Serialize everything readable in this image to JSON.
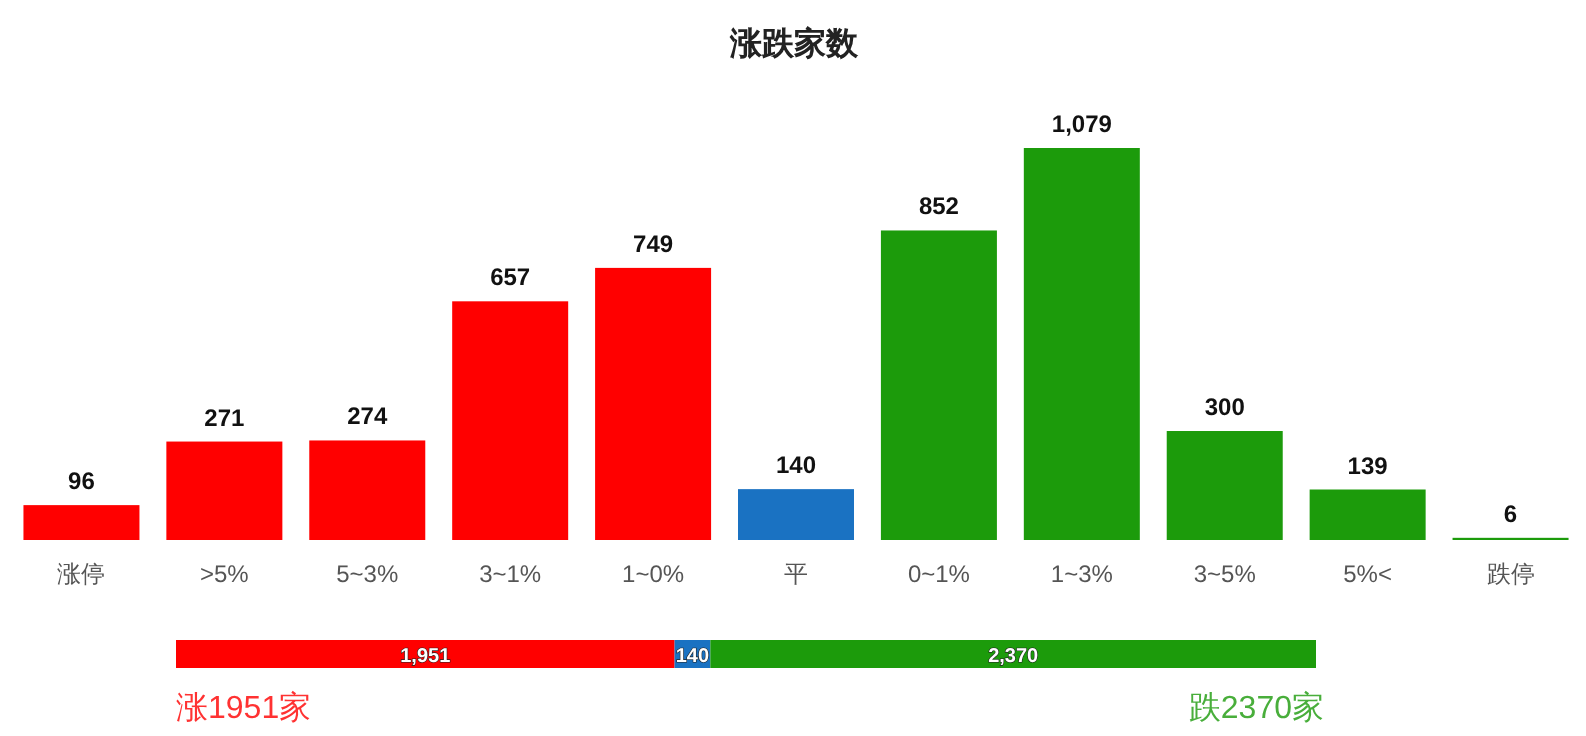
{
  "chart_data": [
    {
      "type": "bar",
      "title": "涨跌家数",
      "categories": [
        "涨停",
        ">5%",
        "5~3%",
        "3~1%",
        "1~0%",
        "平",
        "0~1%",
        "1~3%",
        "3~5%",
        "5%<",
        "跌停"
      ],
      "values": [
        96,
        271,
        274,
        657,
        749,
        140,
        852,
        1079,
        300,
        139,
        6
      ],
      "value_labels": [
        "96",
        "271",
        "274",
        "657",
        "749",
        "140",
        "852",
        "1,079",
        "300",
        "139",
        "6"
      ],
      "colors": [
        "#ff0000",
        "#ff0000",
        "#ff0000",
        "#ff0000",
        "#ff0000",
        "#1a72c2",
        "#1c9b0b",
        "#1c9b0b",
        "#1c9b0b",
        "#1c9b0b",
        "#1c9b0b"
      ]
    },
    {
      "type": "bar",
      "orientation": "horizontal",
      "stacked": true,
      "categories": [
        null
      ],
      "series": [
        {
          "color": "#ff0000",
          "values": [
            1951
          ],
          "value_labels": [
            "1,951"
          ]
        },
        {
          "color": "#1a72c2",
          "values": [
            140
          ],
          "value_labels": [
            "140"
          ]
        },
        {
          "color": "#1c9b0b",
          "values": [
            2370
          ],
          "value_labels": [
            "2,370"
          ]
        }
      ],
      "annotations": [
        "涨1951家",
        "跌2370家"
      ]
    }
  ]
}
